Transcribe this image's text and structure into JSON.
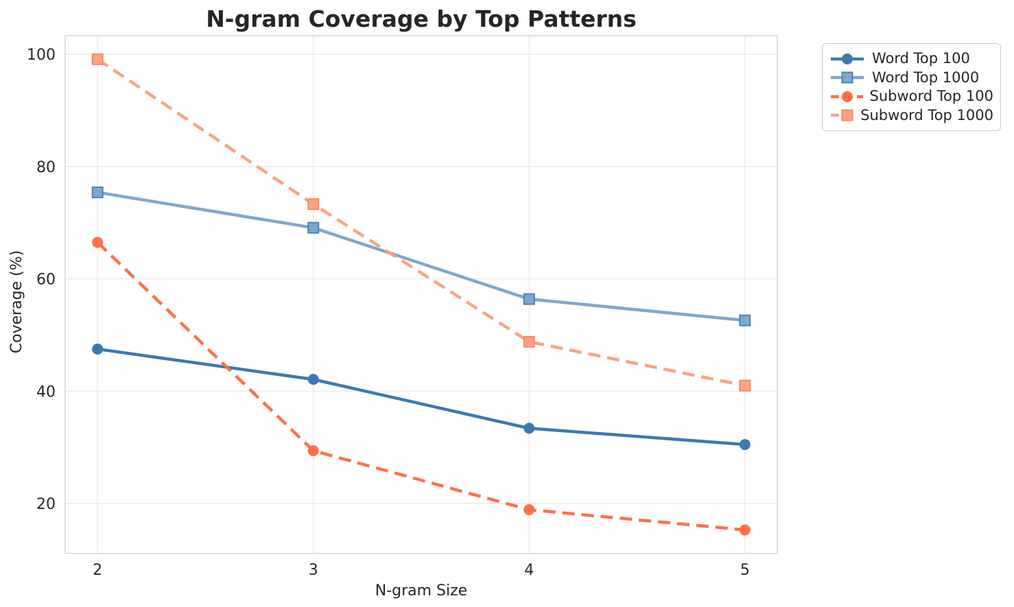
{
  "chart_data": {
    "type": "line",
    "title": "N-gram Coverage by Top Patterns",
    "xlabel": "N-gram Size",
    "ylabel": "Coverage (%)",
    "x": [
      2,
      3,
      4,
      5
    ],
    "xticks": [
      "2",
      "3",
      "4",
      "5"
    ],
    "yticks": [
      20,
      40,
      60,
      80,
      100
    ],
    "xlim": [
      1.85,
      5.15
    ],
    "ylim": [
      11.1,
      103.3
    ],
    "grid": true,
    "legend_position": "outside-upper-right",
    "series": [
      {
        "name": "Word Top 100",
        "values": [
          47.5,
          42.1,
          33.4,
          30.5
        ],
        "color": "#3c79b1",
        "marker": "circle",
        "linestyle": "solid"
      },
      {
        "name": "Word Top 1000",
        "values": [
          75.4,
          69.1,
          56.4,
          52.6
        ],
        "color": "#7ea7ce",
        "marker_edge": "#4a83b8",
        "marker": "square",
        "linestyle": "solid"
      },
      {
        "name": "Subword Top 100",
        "values": [
          66.5,
          29.4,
          18.9,
          15.3
        ],
        "color": "#ff7047",
        "marker": "circle",
        "linestyle": "dashed"
      },
      {
        "name": "Subword Top 1000",
        "values": [
          99.1,
          73.3,
          48.8,
          41.0
        ],
        "color": "#ffa184",
        "marker_edge": "#ff8661",
        "marker": "square",
        "linestyle": "dashed"
      }
    ],
    "style": {
      "background": "#ffffff",
      "grid_color": "#ebebee",
      "spine_color": "#d6d6da",
      "text_color": "#262626"
    }
  }
}
